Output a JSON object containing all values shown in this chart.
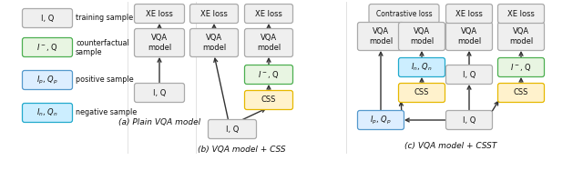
{
  "subtitle_a": "(a) Plain VQA model",
  "subtitle_b": "(b) VQA model + CSS",
  "subtitle_c": "(c) VQA model + CSST",
  "gf": "#efefef",
  "gb": "#aaaaaa",
  "gnf": "#e8f5e2",
  "gnb": "#4caf50",
  "yf": "#fff2cc",
  "yb": "#e6b800",
  "bf": "#ddeeff",
  "bb": "#5599cc",
  "tf": "#cceeff",
  "tb": "#22aacc",
  "bg": "#ffffff",
  "bw": 46,
  "bh": 16,
  "vbh": 26,
  "fs": 6.0,
  "fs_sub": 6.5,
  "fs_leg": 5.8
}
